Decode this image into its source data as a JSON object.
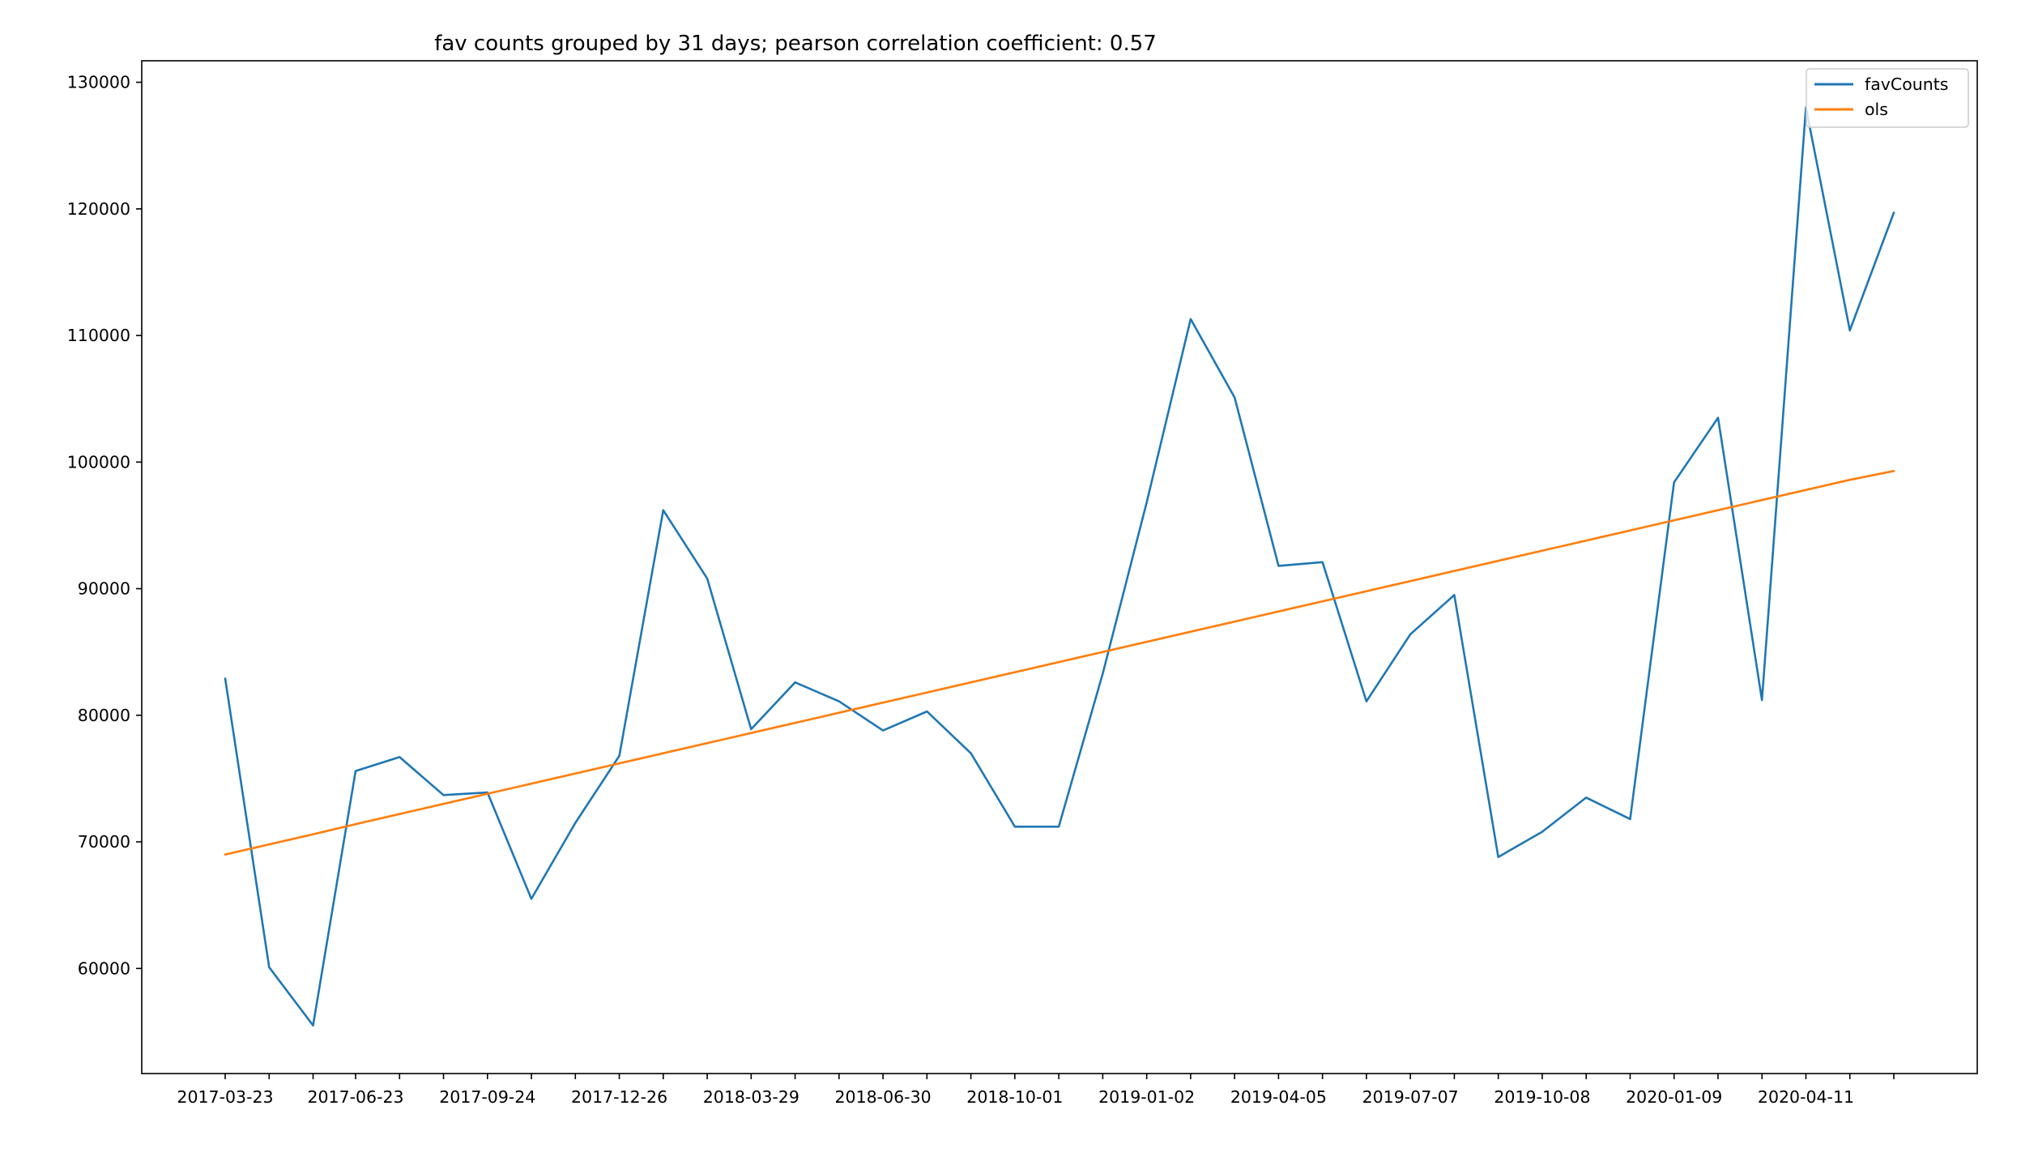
{
  "chart_data": {
    "type": "line",
    "title": "fav counts grouped by 31 days; pearson correlation coefficient: 0.57",
    "xlabel": "",
    "ylabel": "",
    "x_tick_labels": [
      "2017-03-23",
      "2017-06-23",
      "2017-09-24",
      "2017-12-26",
      "2018-03-29",
      "2018-06-30",
      "2018-10-01",
      "2019-01-02",
      "2019-04-05",
      "2019-07-07",
      "2019-10-08",
      "2020-01-09",
      "2020-04-11"
    ],
    "y_ticks": [
      60000,
      70000,
      80000,
      90000,
      100000,
      110000,
      120000,
      130000
    ],
    "ylim": [
      51700,
      131700
    ],
    "grid": false,
    "legend_position": "top-right",
    "x": [
      "2017-03-23",
      "2017-04-23",
      "2017-05-24",
      "2017-06-23",
      "2017-07-24",
      "2017-08-24",
      "2017-09-24",
      "2017-10-25",
      "2017-11-25",
      "2017-12-26",
      "2018-01-26",
      "2018-02-26",
      "2018-03-29",
      "2018-04-29",
      "2018-05-30",
      "2018-06-30",
      "2018-07-31",
      "2018-08-31",
      "2018-10-01",
      "2018-11-01",
      "2018-12-02",
      "2019-01-02",
      "2019-02-02",
      "2019-03-05",
      "2019-04-05",
      "2019-05-06",
      "2019-06-06",
      "2019-07-07",
      "2019-08-07",
      "2019-09-07",
      "2019-10-08",
      "2019-11-08",
      "2019-12-09",
      "2020-01-09",
      "2020-02-09",
      "2020-03-11",
      "2020-04-11",
      "2020-05-12",
      "2020-06-12"
    ],
    "series": [
      {
        "name": "favCounts",
        "color": "#1f77b4",
        "values": [
          82900,
          60100,
          55500,
          75600,
          76700,
          73700,
          73900,
          65500,
          71500,
          76800,
          96200,
          90800,
          78900,
          82600,
          81100,
          78800,
          80300,
          77000,
          71200,
          71200,
          83300,
          96800,
          111300,
          105100,
          91800,
          92100,
          81100,
          86400,
          89500,
          68800,
          70800,
          73500,
          71800,
          98400,
          103500,
          81200,
          128000,
          110400,
          119700
        ]
      },
      {
        "name": "ols",
        "color": "#ff7f0e",
        "values": [
          69000,
          69800,
          70600,
          71400,
          72200,
          73000,
          73800,
          74600,
          75400,
          76200,
          77000,
          77800,
          78600,
          79400,
          80200,
          81000,
          81800,
          82600,
          83400,
          84200,
          85000,
          85800,
          86600,
          87400,
          88200,
          89000,
          89800,
          90600,
          91400,
          92200,
          93000,
          93800,
          94600,
          95400,
          96200,
          97000,
          97800,
          98600,
          99300
        ]
      }
    ]
  }
}
